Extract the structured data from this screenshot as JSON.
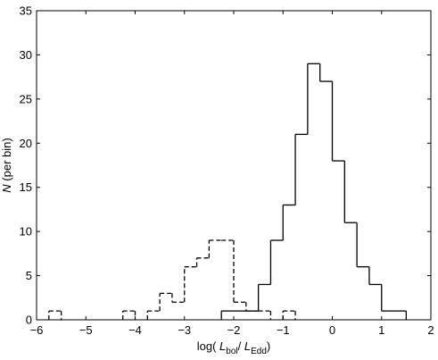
{
  "chart_data": {
    "type": "histogram",
    "xlim": [
      -6,
      2
    ],
    "ylim": [
      0,
      35
    ],
    "xticks": [
      -6,
      -5,
      -4,
      -3,
      -2,
      -1,
      0,
      1,
      2
    ],
    "yticks": [
      0,
      5,
      10,
      15,
      20,
      25,
      30,
      35
    ],
    "grid": false,
    "legend": "none",
    "xlabel": {
      "prefix": "log( ",
      "var1": "L",
      "sub1": "bol",
      "sep": "/ ",
      "var2": "L",
      "sub2": "Edd",
      "suffix": ")"
    },
    "ylabel": {
      "var": "N",
      "text": " (per bin)"
    },
    "bin_width": 0.25,
    "series": [
      {
        "style": "solid",
        "color": "#000000",
        "bins": [
          {
            "left": -2.25,
            "count": 1
          },
          {
            "left": -2.0,
            "count": 1
          },
          {
            "left": -1.75,
            "count": 1
          },
          {
            "left": -1.5,
            "count": 4
          },
          {
            "left": -1.25,
            "count": 9
          },
          {
            "left": -1.0,
            "count": 13
          },
          {
            "left": -0.75,
            "count": 21
          },
          {
            "left": -0.5,
            "count": 29
          },
          {
            "left": -0.25,
            "count": 27
          },
          {
            "left": 0.0,
            "count": 18
          },
          {
            "left": 0.25,
            "count": 11
          },
          {
            "left": 0.5,
            "count": 6
          },
          {
            "left": 0.75,
            "count": 4
          },
          {
            "left": 1.0,
            "count": 1
          },
          {
            "left": 1.25,
            "count": 1
          }
        ]
      },
      {
        "style": "dashed",
        "color": "#000000",
        "bins": [
          {
            "left": -5.75,
            "count": 1
          },
          {
            "left": -4.25,
            "count": 1
          },
          {
            "left": -3.75,
            "count": 1
          },
          {
            "left": -3.5,
            "count": 3
          },
          {
            "left": -3.25,
            "count": 2
          },
          {
            "left": -3.0,
            "count": 6
          },
          {
            "left": -2.75,
            "count": 7
          },
          {
            "left": -2.5,
            "count": 9
          },
          {
            "left": -2.25,
            "count": 9
          },
          {
            "left": -2.0,
            "count": 2
          },
          {
            "left": -1.75,
            "count": 1
          },
          {
            "left": -1.5,
            "count": 1
          },
          {
            "left": -1.0,
            "count": 1
          }
        ]
      }
    ]
  }
}
